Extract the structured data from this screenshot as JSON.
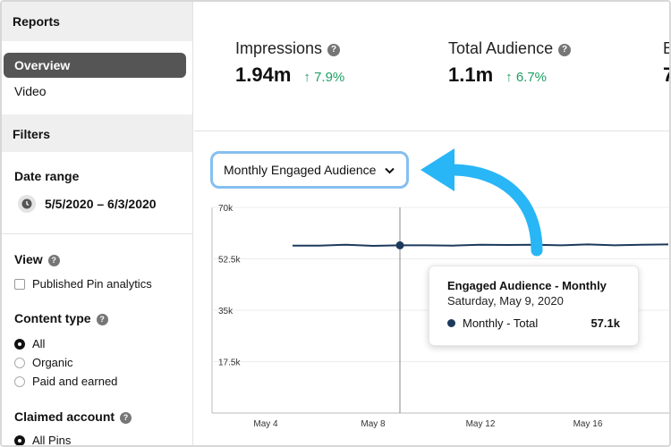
{
  "sidebar": {
    "reports_heading": "Reports",
    "nav": [
      {
        "label": "Overview",
        "active": true
      },
      {
        "label": "Video",
        "active": false
      }
    ],
    "filters_heading": "Filters",
    "date_range_label": "Date range",
    "date_range_value": "5/5/2020 – 6/3/2020",
    "view_label": "View",
    "published_pin_label": "Published Pin analytics",
    "content_type_label": "Content type",
    "content_types": [
      "All",
      "Organic",
      "Paid and earned"
    ],
    "claimed_account_label": "Claimed account",
    "claimed_account_options": [
      "All Pins"
    ]
  },
  "metrics": [
    {
      "name": "Impressions",
      "value": "1.94m",
      "delta": "7.9%"
    },
    {
      "name": "Total Audience",
      "value": "1.1m",
      "delta": "6.7%"
    },
    {
      "name": "E",
      "value": "7"
    }
  ],
  "dropdown": {
    "label": "Monthly Engaged Audience"
  },
  "tooltip": {
    "title": "Engaged Audience - Monthly",
    "date": "Saturday, May 9, 2020",
    "series": "Monthly - Total",
    "value": "57.1k"
  },
  "colors": {
    "accent_line": "#1d3a5c",
    "arrow": "#29b6f6",
    "positive": "#1d9f63",
    "focus_ring": "#86bff0"
  },
  "chart_data": {
    "type": "line",
    "ytick_labels": [
      "70k",
      "52.5k",
      "35k",
      "17.5k"
    ],
    "yticks": [
      70000,
      52500,
      35000,
      17500
    ],
    "xtick_labels": [
      "May 4",
      "May 8",
      "May 12",
      "May 16"
    ],
    "ylim": [
      0,
      70000
    ],
    "series": [
      {
        "name": "Monthly - Total",
        "x": [
          5,
          6,
          7,
          8,
          9,
          10,
          11,
          12,
          13,
          14,
          15,
          16,
          17,
          18,
          19
        ],
        "values": [
          57000,
          57000,
          57300,
          56900,
          57100,
          57100,
          57000,
          57300,
          57200,
          57300,
          57100,
          57400,
          57100,
          57300,
          57400
        ]
      }
    ],
    "highlight": {
      "x": 9,
      "value": 57100
    }
  }
}
